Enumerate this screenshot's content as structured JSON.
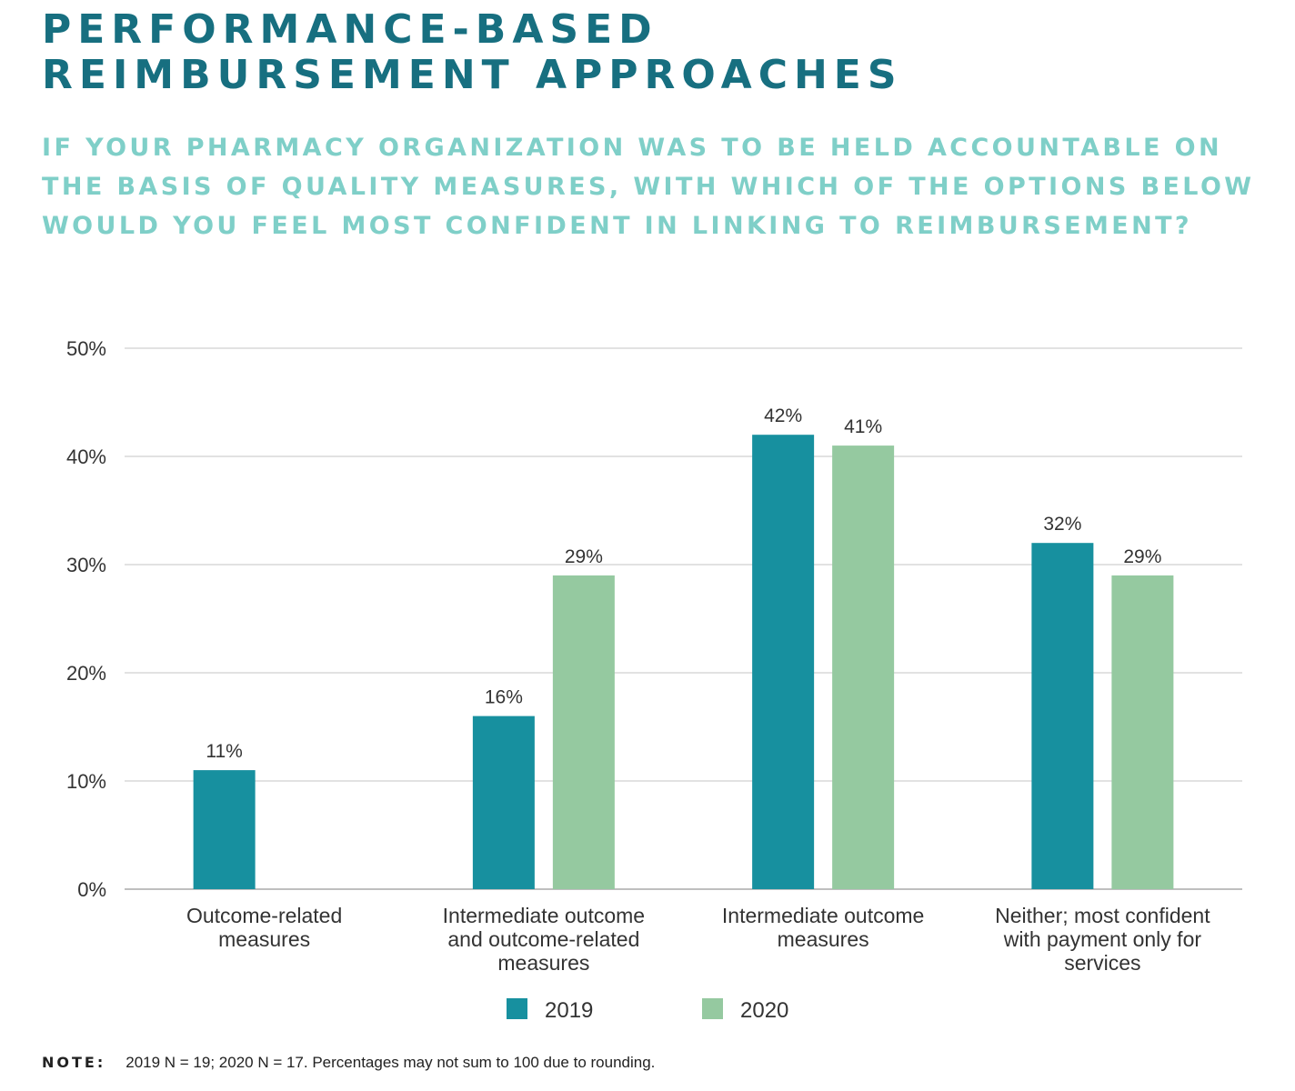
{
  "header": {
    "title_line1": "PERFORMANCE-BASED",
    "title_line2": "REIMBURSEMENT APPROACHES",
    "question": "IF YOUR PHARMACY ORGANIZATION WAS TO BE HELD ACCOUNTABLE ON THE BASIS OF QUALITY MEASURES, WITH WHICH OF THE OPTIONS BELOW WOULD YOU FEEL MOST CONFIDENT IN LINKING TO REIMBURSEMENT?"
  },
  "chart_data": {
    "type": "bar",
    "title": "PERFORMANCE-BASED REIMBURSEMENT APPROACHES",
    "categories": [
      [
        "Outcome-related",
        "measures"
      ],
      [
        "Intermediate outcome",
        "and outcome-related",
        "measures"
      ],
      [
        "Intermediate outcome",
        "measures"
      ],
      [
        "Neither; most confident",
        "with payment only for",
        "services"
      ]
    ],
    "series": [
      {
        "name": "2019",
        "color": "#17909f",
        "values": [
          11,
          16,
          42,
          32
        ],
        "labels": [
          "11%",
          "16%",
          "42%",
          "32%"
        ]
      },
      {
        "name": "2020",
        "color": "#95c9a0",
        "values": [
          null,
          29,
          41,
          29
        ],
        "labels": [
          "",
          "29%",
          "41%",
          "29%"
        ]
      }
    ],
    "ylim": [
      0,
      50
    ],
    "yticks": [
      0,
      10,
      20,
      30,
      40,
      50
    ],
    "ytick_labels": [
      "0%",
      "10%",
      "20%",
      "30%",
      "40%",
      "50%"
    ],
    "xlabel": "",
    "ylabel": "",
    "grid": true,
    "legend_position": "bottom-center",
    "colors": {
      "grid": "#d9d9d9",
      "axis": "#bfbfbf",
      "text": "#333333"
    }
  },
  "note": {
    "label": "NOTE:",
    "text": "2019 N = 19; 2020 N = 17. Percentages may not sum to 100 due to rounding."
  }
}
